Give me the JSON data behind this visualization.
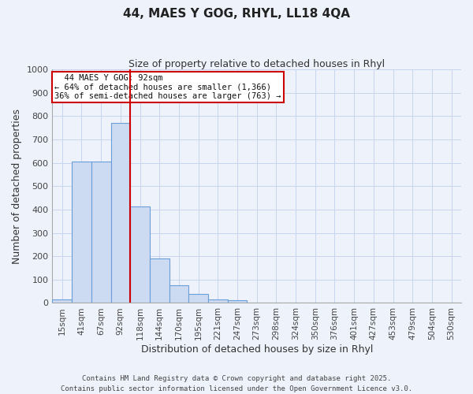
{
  "title": "44, MAES Y GOG, RHYL, LL18 4QA",
  "subtitle": "Size of property relative to detached houses in Rhyl",
  "xlabel": "Distribution of detached houses by size in Rhyl",
  "ylabel": "Number of detached properties",
  "bar_labels": [
    "15sqm",
    "41sqm",
    "67sqm",
    "92sqm",
    "118sqm",
    "144sqm",
    "170sqm",
    "195sqm",
    "221sqm",
    "247sqm",
    "273sqm",
    "298sqm",
    "324sqm",
    "350sqm",
    "376sqm",
    "401sqm",
    "427sqm",
    "453sqm",
    "479sqm",
    "504sqm",
    "530sqm"
  ],
  "bar_values": [
    15,
    607,
    607,
    770,
    413,
    192,
    77,
    40,
    15,
    10,
    0,
    0,
    0,
    0,
    0,
    0,
    0,
    0,
    0,
    0,
    0
  ],
  "bar_color": "#ccdaf2",
  "bar_edge_color": "#6a9fd8",
  "bg_color": "#eef2fb",
  "grid_color": "#c8d4ee",
  "vline_color": "#cc0000",
  "annotation_title": "44 MAES Y GOG: 92sqm",
  "annotation_line1": "← 64% of detached houses are smaller (1,366)",
  "annotation_line2": "36% of semi-detached houses are larger (763) →",
  "annotation_box_color": "#ffffff",
  "annotation_border_color": "#cc0000",
  "ylim": [
    0,
    1000
  ],
  "yticks": [
    0,
    100,
    200,
    300,
    400,
    500,
    600,
    700,
    800,
    900,
    1000
  ],
  "footer_line1": "Contains HM Land Registry data © Crown copyright and database right 2025.",
  "footer_line2": "Contains public sector information licensed under the Open Government Licence v3.0."
}
